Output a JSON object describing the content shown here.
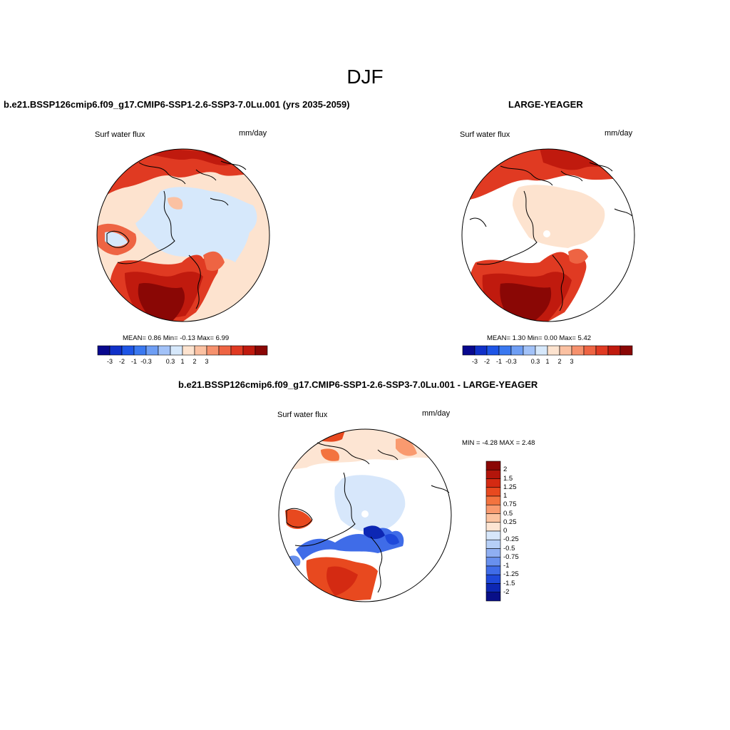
{
  "figure": {
    "title": "DJF",
    "panel1": {
      "title": "b.e21.BSSP126cmip6.f09_g17.CMIP6-SSP1-2.6-SSP3-7.0Lu.001 (yrs 2035-2059)",
      "variable": "Surf water flux",
      "units": "mm/day",
      "stats": "MEAN=   0.86  Min=  -0.13  Max=   6.99"
    },
    "panel2": {
      "title": "LARGE-YEAGER",
      "variable": "Surf water flux",
      "units": "mm/day",
      "stats": "MEAN=   1.30  Min=   0.00  Max=   5.42"
    },
    "panel3": {
      "title": "b.e21.BSSP126cmip6.f09_g17.CMIP6-SSP1-2.6-SSP3-7.0Lu.001 - LARGE-YEAGER",
      "variable": "Surf water flux",
      "units": "mm/day",
      "stats": "MIN =  -4.28 MAX =   2.48"
    }
  },
  "colorbar_main": {
    "colors": [
      "#08088e",
      "#1030c8",
      "#1e55e6",
      "#3a78f0",
      "#6e9ef4",
      "#a2c2f8",
      "#d6e8fb",
      "#fde3cf",
      "#fbc1a2",
      "#f6916d",
      "#ee6443",
      "#e03a22",
      "#c01a0e",
      "#8a0705"
    ],
    "tick_labels": [
      "-3",
      "-2",
      "-1",
      "-0.3",
      "0.3",
      "1",
      "2",
      "3"
    ]
  },
  "colorbar_diff": {
    "colors": [
      "#8a0705",
      "#b3150b",
      "#d42a12",
      "#e8491f",
      "#f3733f",
      "#f99a6f",
      "#fcc3a0",
      "#fde5d3",
      "#d7e7fb",
      "#b6cff7",
      "#8faff2",
      "#6890ee",
      "#3f6ce8",
      "#1e48da",
      "#0d27b4",
      "#080f88"
    ],
    "tick_labels": [
      "2",
      "1.5",
      "1.25",
      "1",
      "0.75",
      "0.5",
      "0.25",
      "0",
      "-0.25",
      "-0.5",
      "-0.75",
      "-1",
      "-1.25",
      "-1.5",
      "-2"
    ]
  }
}
